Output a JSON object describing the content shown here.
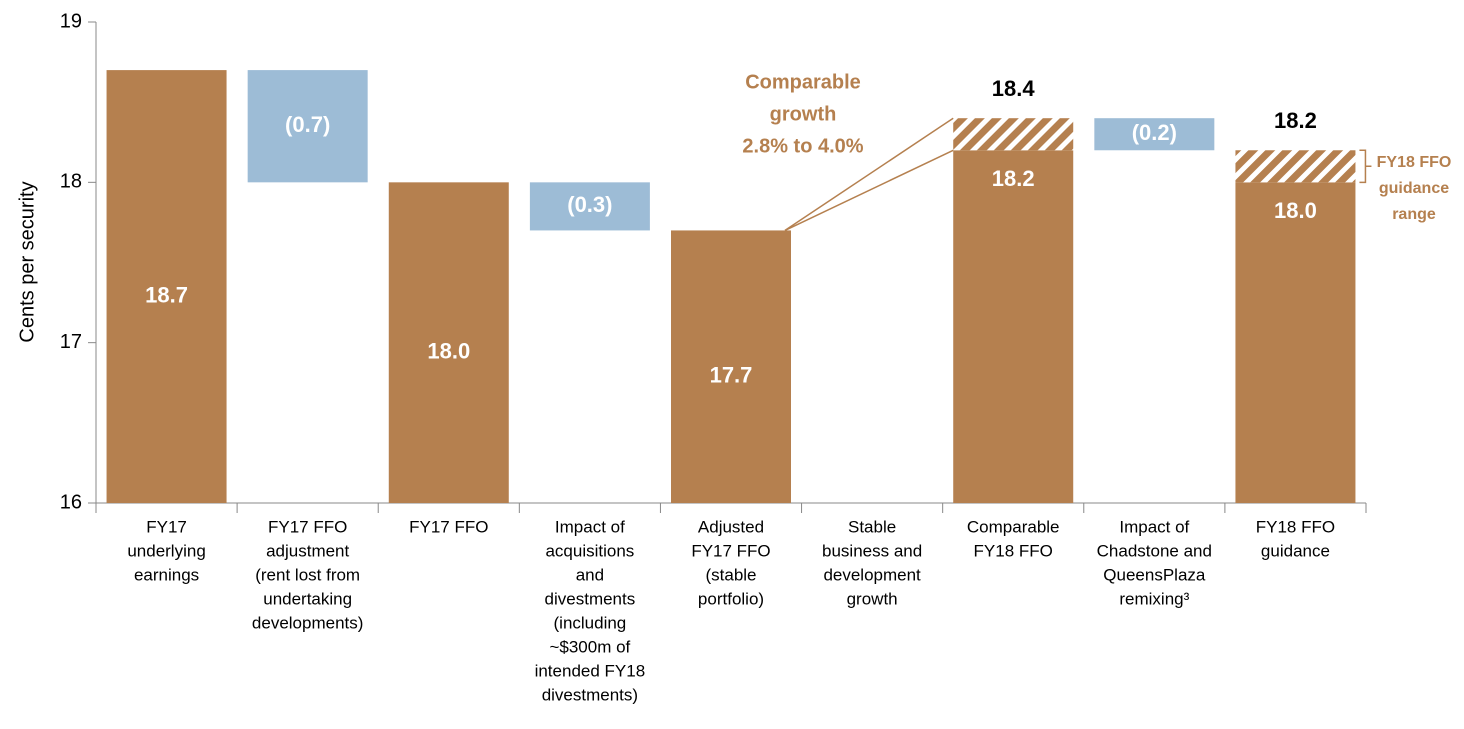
{
  "chart_data": {
    "type": "waterfall",
    "ylabel": "Cents per security",
    "categories": [
      [
        "FY17",
        "underlying",
        "earnings"
      ],
      [
        "FY17 FFO",
        "adjustment",
        "(rent lost from",
        "undertaking",
        "developments)"
      ],
      [
        "FY17 FFO"
      ],
      [
        "Impact of",
        "acquisitions",
        "and",
        "divestments",
        "(including",
        "~$300m of",
        "intended FY18",
        "divestments)"
      ],
      [
        "Adjusted",
        "FY17 FFO",
        "(stable",
        "portfolio)"
      ],
      [
        "Stable",
        "business and",
        "development",
        "growth"
      ],
      [
        "Comparable",
        "FY18 FFO"
      ],
      [
        "Impact of",
        "Chadstone and",
        "QueensPlaza",
        "remixing³"
      ],
      [
        "FY18 FFO",
        "guidance"
      ]
    ],
    "kinds": [
      "total",
      "delta",
      "total",
      "delta",
      "total",
      null,
      "total",
      "delta",
      "total"
    ],
    "values": [
      18.7,
      -0.7,
      18.0,
      -0.3,
      17.7,
      null,
      18.2,
      -0.2,
      18.0
    ],
    "value_labels": [
      "18.7",
      "(0.7)",
      "18.0",
      "(0.3)",
      "17.7",
      null,
      "18.2",
      "(0.2)",
      "18.0"
    ],
    "upper": [
      null,
      null,
      null,
      null,
      null,
      null,
      18.4,
      null,
      18.2
    ],
    "upper_labels": [
      null,
      null,
      null,
      null,
      null,
      null,
      "18.4",
      null,
      "18.2"
    ],
    "total_color": "#b5804f",
    "delta_color": "#9dbcd6",
    "ylim": [
      16,
      19
    ],
    "yticks": [
      16,
      17,
      18,
      19
    ],
    "annotations": [
      [
        "Comparable",
        "growth",
        "2.8% to 4.0%"
      ],
      [
        "FY18 FFO",
        "guidance",
        "range"
      ]
    ]
  }
}
